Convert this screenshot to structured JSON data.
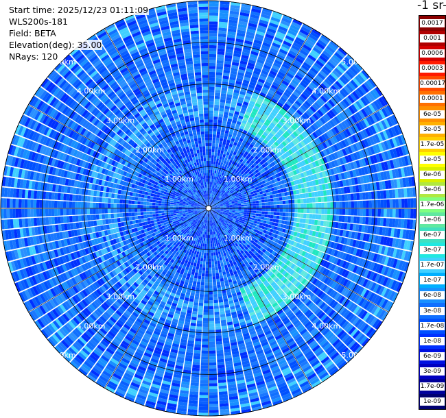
{
  "header": {
    "start_time": "Start time: 2025/12/23 01:11:09",
    "instrument": "WLS200s-181",
    "field": "Field: BETA",
    "elevation": "Elevation(deg): 35.00",
    "nrays": "NRays: 120"
  },
  "colorbar": {
    "unit_title": "-1 sr-",
    "levels": [
      "0.0017",
      "0.001",
      "0.0006",
      "0.0003",
      "0.00017",
      "0.0001",
      "6e-05",
      "3e-05",
      "1.7e-05",
      "1e-05",
      "6e-06",
      "3e-06",
      "1.7e-06",
      "1e-06",
      "6e-07",
      "3e-07",
      "1.7e-07",
      "1e-07",
      "6e-08",
      "3e-08",
      "1.7e-08",
      "1e-08",
      "6e-09",
      "3e-09",
      "1.7e-09",
      "1e-09"
    ],
    "colors": [
      "#8b0000",
      "#b00000",
      "#d40000",
      "#ff1a00",
      "#ff4a00",
      "#ff7000",
      "#ff9000",
      "#ffb000",
      "#ffd000",
      "#ffff00",
      "#d8f000",
      "#b0e840",
      "#80ff80",
      "#60e8a0",
      "#40e0c0",
      "#20e8e0",
      "#40d0ff",
      "#00b0ff",
      "#1890ff",
      "#1070ff",
      "#0050ff",
      "#0030ff",
      "#0010e0",
      "#0000c0",
      "#00009a",
      "#000070"
    ]
  },
  "chart_data": {
    "type": "heatmap",
    "title": "",
    "field": "BETA",
    "elevation_deg": 35.0,
    "nrays": 120,
    "range_rings": [
      "1.00km",
      "2.00km",
      "3.00km",
      "4.00km",
      "5.00km"
    ],
    "max_range_km": 5.6,
    "features": {
      "dominant_value": "3e-08 to 1e-08 (blue)",
      "ring_enhancement": {
        "range_km": 2.5,
        "value": "1e-07 to 3e-07 (cyan)",
        "azimuth_span": "north-east and south-east"
      }
    }
  }
}
